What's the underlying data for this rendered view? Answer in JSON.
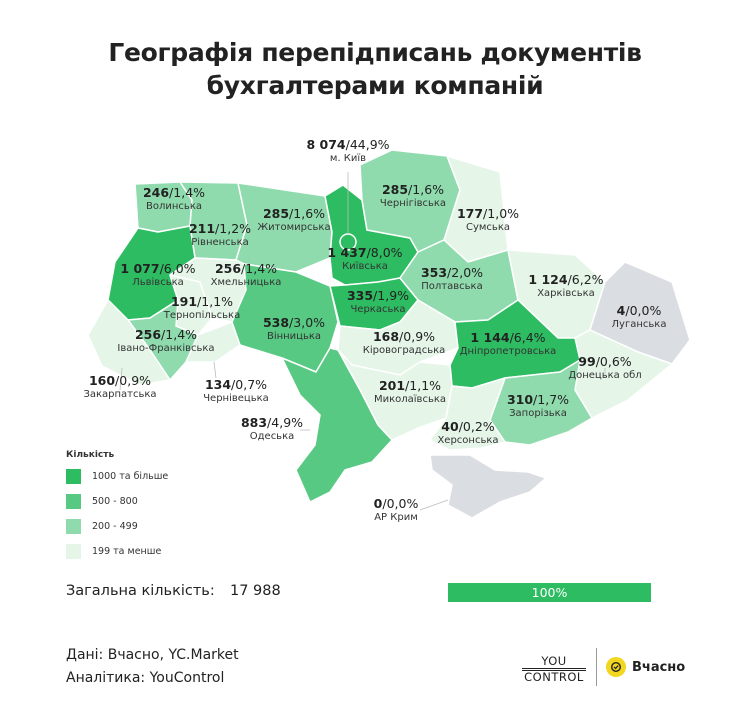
{
  "title": {
    "line1": "Географія перепідписань документів",
    "line2": "бухгалтерами компаній"
  },
  "colors": {
    "tier_1000_plus": "#2ebc62",
    "tier_500_800": "#57c982",
    "tier_200_499": "#90dbad",
    "tier_under_199": "#e5f5e8",
    "occupied": "#dadde2",
    "bar_fill": "#2ebc62"
  },
  "chart_data": {
    "type": "choropleth-map",
    "title": "Географія перепідписань документів бухгалтерами компаній",
    "regions": [
      {
        "name": "м. Київ",
        "value": "8 074",
        "share": "44,9%"
      },
      {
        "name": "Волинська",
        "value": "246",
        "share": "1,4%"
      },
      {
        "name": "Рівненська",
        "value": "211",
        "share": "1,2%"
      },
      {
        "name": "Житомирська",
        "value": "285",
        "share": "1,6%"
      },
      {
        "name": "Чернігівська",
        "value": "285",
        "share": "1,6%"
      },
      {
        "name": "Сумська",
        "value": "177",
        "share": "1,0%"
      },
      {
        "name": "Львівська",
        "value": "1 077",
        "share": "6,0%"
      },
      {
        "name": "Хмельницька",
        "value": "256",
        "share": "1,4%"
      },
      {
        "name": "Київська",
        "value": "1 437",
        "share": "8,0%"
      },
      {
        "name": "Полтавська",
        "value": "353",
        "share": "2,0%"
      },
      {
        "name": "Харківська",
        "value": "1 124",
        "share": "6,2%"
      },
      {
        "name": "Тернопільська",
        "value": "191",
        "share": "1,1%"
      },
      {
        "name": "Черкаська",
        "value": "335",
        "share": "1,9%"
      },
      {
        "name": "Луганська",
        "value": "4",
        "share": "0,0%"
      },
      {
        "name": "Вінницька",
        "value": "538",
        "share": "3,0%"
      },
      {
        "name": "Івано-Франківська",
        "value": "256",
        "share": "1,4%"
      },
      {
        "name": "Кіровоградська",
        "value": "168",
        "share": "0,9%"
      },
      {
        "name": "Дніпропетровська",
        "value": "1 144",
        "share": "6,4%"
      },
      {
        "name": "Донецька обл",
        "value": "99",
        "share": "0,6%"
      },
      {
        "name": "Закарпатська",
        "value": "160",
        "share": "0,9%"
      },
      {
        "name": "Чернівецька",
        "value": "134",
        "share": "0,7%"
      },
      {
        "name": "Миколаївська",
        "value": "201",
        "share": "1,1%"
      },
      {
        "name": "Запорізька",
        "value": "310",
        "share": "1,7%"
      },
      {
        "name": "Одеська",
        "value": "883",
        "share": "4,9%"
      },
      {
        "name": "Херсонська",
        "value": "40",
        "share": "0,2%"
      },
      {
        "name": "АР Крим",
        "value": "0",
        "share": "0,0%"
      }
    ],
    "legend": {
      "title": "Кількість",
      "items": [
        {
          "label": "1000 та більше",
          "color": "#2ebc62"
        },
        {
          "label": "500 - 800",
          "color": "#57c982"
        },
        {
          "label": "200 - 499",
          "color": "#90dbad"
        },
        {
          "label": "199 та менше",
          "color": "#e5f5e8"
        }
      ]
    }
  },
  "total": {
    "label": "Загальна кількість:",
    "value": "17 988",
    "percent": "100%",
    "fill_fraction": 1.0
  },
  "footer": {
    "data_source": "Дані: Вчасно, YC.Market",
    "analytics": "Аналітика: YouControl",
    "youcontrol_line1": "YOU",
    "youcontrol_line2": "CONTROL",
    "vchasno": "Вчасно"
  }
}
